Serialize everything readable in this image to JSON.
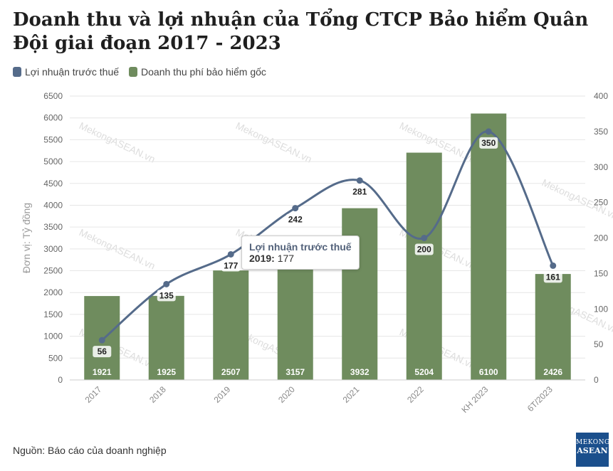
{
  "title": "Doanh thu và lợi nhuận của Tổng CTCP Bảo hiểm Quân Đội giai đoạn 2017 - 2023",
  "legend": [
    {
      "label": "Lợi nhuận trước thuế",
      "color": "#556b8a"
    },
    {
      "label": "Doanh thu phí bảo hiểm gốc",
      "color": "#6f8c5e"
    }
  ],
  "source": "Nguồn: Báo cáo của doanh nghiệp",
  "logo": {
    "line1": "MEKONG",
    "line2": "ASEAN"
  },
  "watermark": "MekongASEAN.vn",
  "tooltip": {
    "title": "Lợi nhuận trước thuế",
    "label": "2019:",
    "value": "177"
  },
  "chart_data": {
    "type": "bar",
    "categories": [
      "2017",
      "2018",
      "2019",
      "2020",
      "2021",
      "2022",
      "KH 2023",
      "6T/2023"
    ],
    "ylabel": "Đơn vị: Tỷ đồng",
    "ylim": [
      0,
      6500
    ],
    "y2lim": [
      0,
      400
    ],
    "yticks": [
      0,
      500,
      1000,
      1500,
      2000,
      2500,
      3000,
      3500,
      4000,
      4500,
      5000,
      5500,
      6000,
      6500
    ],
    "y2ticks": [
      0,
      50,
      100,
      150,
      200,
      250,
      300,
      350,
      400
    ],
    "grid": true,
    "legend_position": "top-left",
    "series": [
      {
        "name": "Doanh thu phí bảo hiểm gốc",
        "type": "bar",
        "axis": "left",
        "color": "#6f8c5e",
        "values": [
          1921,
          1925,
          2507,
          3157,
          3932,
          5204,
          6100,
          2426
        ]
      },
      {
        "name": "Lợi nhuận trước thuế",
        "type": "line",
        "axis": "right",
        "color": "#556b8a",
        "values": [
          56,
          135,
          177,
          242,
          281,
          200,
          350,
          161
        ]
      }
    ]
  }
}
